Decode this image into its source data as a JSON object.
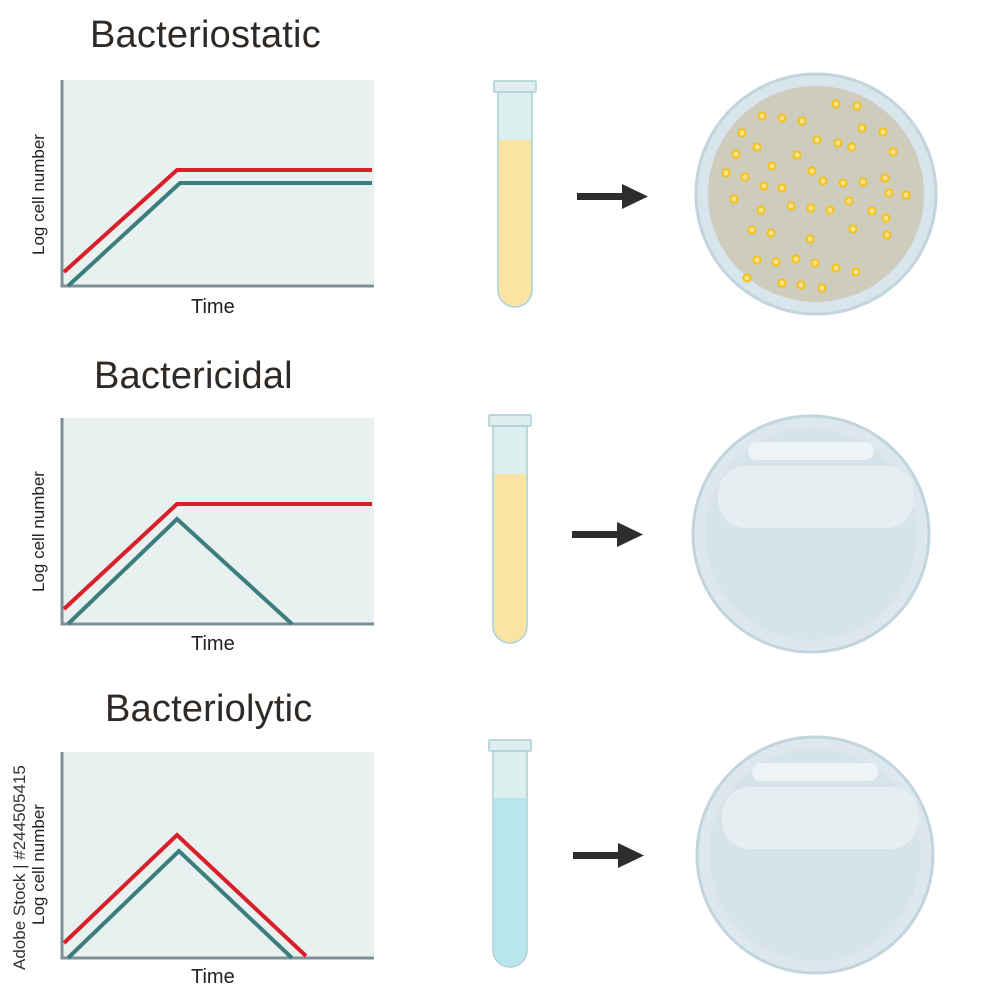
{
  "panels": [
    {
      "title": "Bacteriostatic",
      "ylabel": "Log cell number",
      "xlabel": "Time"
    },
    {
      "title": "Bactericidal",
      "ylabel": "Log cell number",
      "xlabel": "Time"
    },
    {
      "title": "Bacteriolytic",
      "ylabel": "Log cell number",
      "xlabel": "Time"
    }
  ],
  "watermark": {
    "stock_id": "Adobe Stock | #244505415"
  },
  "colors": {
    "red_line": "#d9202a",
    "teal_line": "#3c7e7d",
    "chart_bg": "#e9f0f0",
    "axis": "#7d8f98",
    "tube_yellow": "#fbe3a1",
    "tube_blue": "#b7e7ec",
    "dish_rim": "#b8ccd8",
    "dish_agar_growth": "#cdccbd",
    "dish_clear": "#d7e3ea",
    "colony": "#f2c21b",
    "arrow": "#2d2d2d"
  },
  "icons": [
    "arrow-right-icon",
    "test-tube-icon",
    "petri-dish-icon"
  ]
}
